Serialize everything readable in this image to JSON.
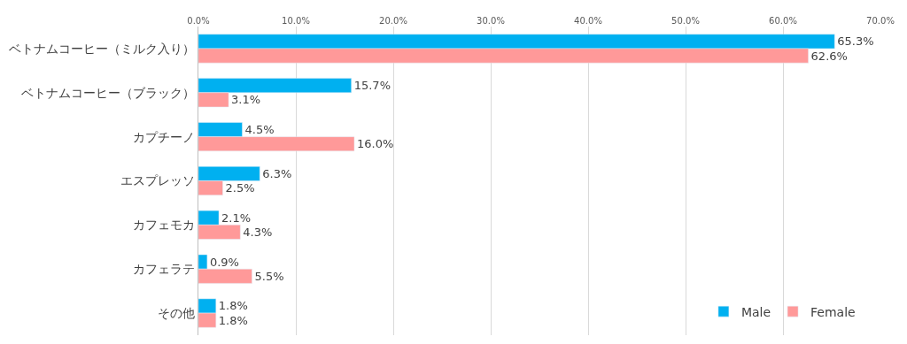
{
  "chart_data": {
    "type": "bar",
    "orientation": "horizontal",
    "categories": [
      "ベトナムコーヒー（ミルク入り）",
      "ベトナムコーヒー（ブラック）",
      "カプチーノ",
      "エスプレッソ",
      "カフェモカ",
      "カフェラテ",
      "その他"
    ],
    "series": [
      {
        "name": "Male",
        "color": "#00b0f0",
        "values": [
          65.3,
          15.7,
          4.5,
          6.3,
          2.1,
          0.9,
          1.8
        ],
        "value_labels": [
          "65.3%",
          "15.7%",
          "4.5%",
          "6.3%",
          "2.1%",
          "0.9%",
          "1.8%"
        ]
      },
      {
        "name": "Female",
        "color": "#ff9999",
        "values": [
          62.6,
          3.1,
          16.0,
          2.5,
          4.3,
          5.5,
          1.8
        ],
        "value_labels": [
          "62.6%",
          "3.1%",
          "16.0%",
          "2.5%",
          "4.3%",
          "5.5%",
          "1.8%"
        ]
      }
    ],
    "xlim": [
      0,
      70
    ],
    "xticks": [
      {
        "value": 0,
        "label": "0.0%"
      },
      {
        "value": 10,
        "label": "10.0%"
      },
      {
        "value": 20,
        "label": "20.0%"
      },
      {
        "value": 30,
        "label": "30.0%"
      },
      {
        "value": 40,
        "label": "40.0%"
      },
      {
        "value": 50,
        "label": "50.0%"
      },
      {
        "value": 60,
        "label": "60.0%"
      },
      {
        "value": 70,
        "label": "70.0%"
      }
    ],
    "grid": "x",
    "legend": "bottom right"
  }
}
